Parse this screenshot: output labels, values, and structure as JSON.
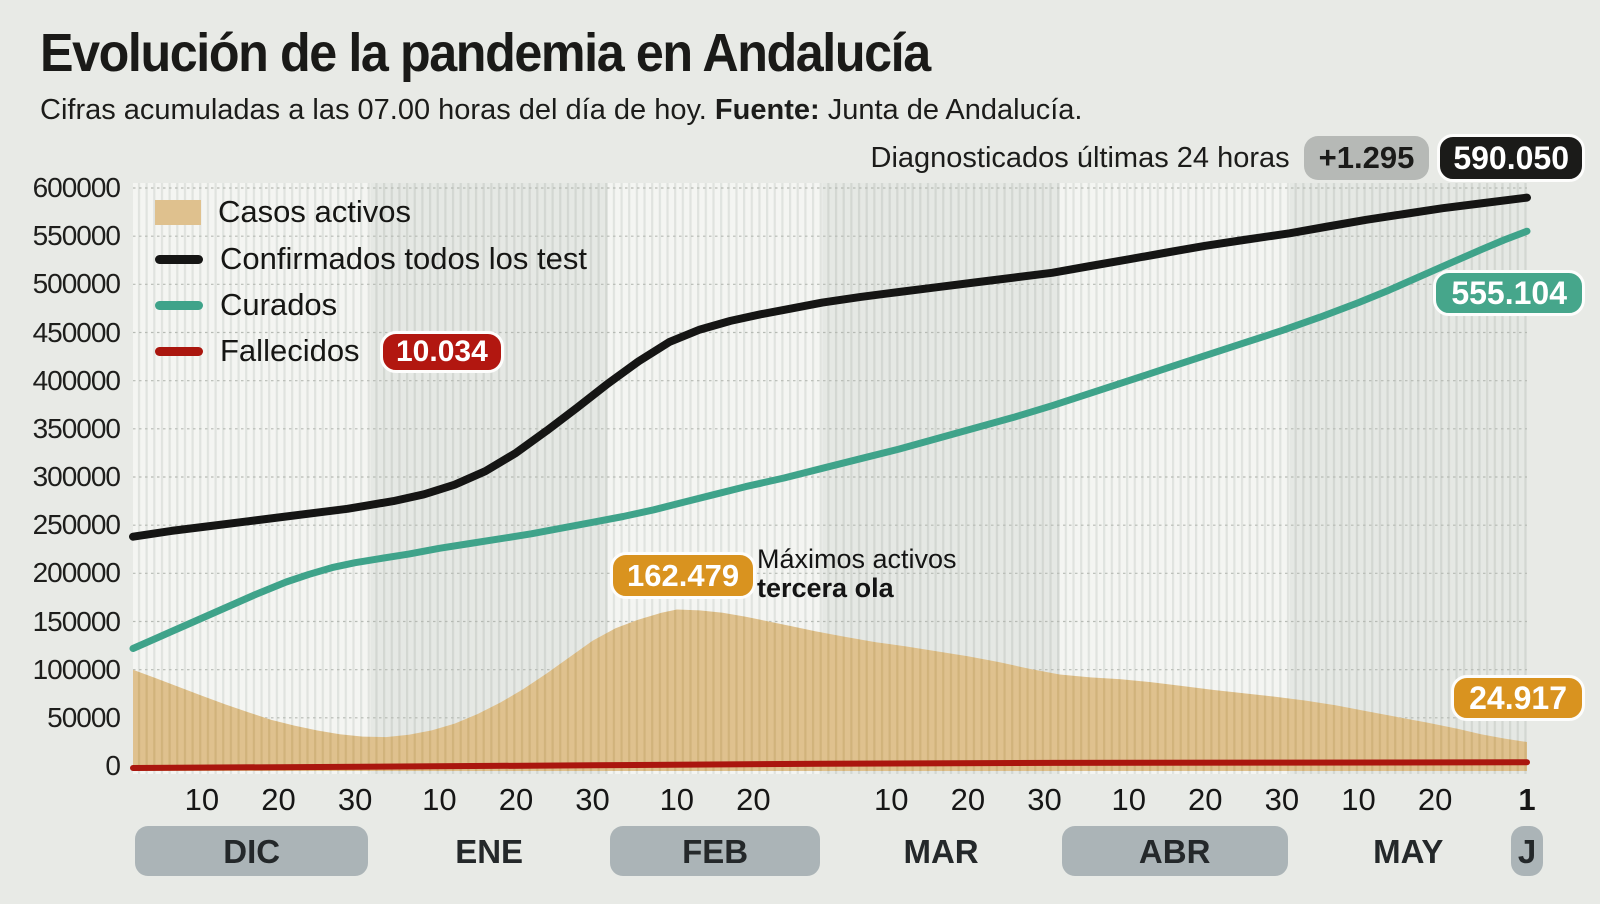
{
  "header": {
    "title": "Evolución de la pandemia en Andalucía",
    "subtitle_prefix": "Cifras acumuladas a las 07.00 horas del día de hoy. ",
    "subtitle_bold": "Fuente:",
    "subtitle_suffix": " Junta de Andalucía.",
    "diag_label": "Diagnosticados últimas 24 horas",
    "diag_delta": "+1.295",
    "diag_total": "590.050"
  },
  "legend": {
    "items": [
      {
        "label": "Casos activos",
        "type": "area",
        "color": "#dfc18e"
      },
      {
        "label": "Confirmados todos los test",
        "type": "line",
        "color": "#151514"
      },
      {
        "label": "Curados",
        "type": "line",
        "color": "#3fa38a"
      },
      {
        "label": "Fallecidos",
        "type": "line",
        "color": "#aa160e",
        "badge": "10.034",
        "badge_color": "#b21710"
      }
    ]
  },
  "annotations": {
    "max_active_value": "162.479",
    "max_active_line1": "Máximos activos",
    "max_active_line2": "tercera ola",
    "curados_end": "555.104",
    "activos_end": "24.917"
  },
  "axes": {
    "y_ticks": [
      {
        "label": "600000",
        "value": 600000
      },
      {
        "label": "550000",
        "value": 550000
      },
      {
        "label": "500000",
        "value": 500000
      },
      {
        "label": "450000",
        "value": 450000
      },
      {
        "label": "400000",
        "value": 400000
      },
      {
        "label": "350000",
        "value": 350000
      },
      {
        "label": "300000",
        "value": 300000
      },
      {
        "label": "250000",
        "value": 250000
      },
      {
        "label": "200000",
        "value": 200000
      },
      {
        "label": "150000",
        "value": 150000
      },
      {
        "label": "100000",
        "value": 100000
      },
      {
        "label": "50000",
        "value": 50000
      },
      {
        "label": "0",
        "value": 0
      }
    ],
    "x_ticks": [
      {
        "label": "10",
        "day": 9
      },
      {
        "label": "20",
        "day": 19
      },
      {
        "label": "30",
        "day": 29
      },
      {
        "label": "10",
        "day": 40
      },
      {
        "label": "20",
        "day": 50
      },
      {
        "label": "30",
        "day": 60
      },
      {
        "label": "10",
        "day": 71
      },
      {
        "label": "20",
        "day": 81
      },
      {
        "label": "10",
        "day": 99
      },
      {
        "label": "20",
        "day": 109
      },
      {
        "label": "30",
        "day": 119
      },
      {
        "label": "10",
        "day": 130
      },
      {
        "label": "20",
        "day": 140
      },
      {
        "label": "30",
        "day": 150
      },
      {
        "label": "10",
        "day": 160
      },
      {
        "label": "20",
        "day": 170
      },
      {
        "label": "1",
        "day": 182,
        "bold": true
      }
    ],
    "months": [
      {
        "label": "DIC",
        "days": 31,
        "pill": true,
        "shade": "light"
      },
      {
        "label": "ENE",
        "days": 31,
        "pill": false,
        "shade": "dark"
      },
      {
        "label": "FEB",
        "days": 28,
        "pill": true,
        "shade": "light"
      },
      {
        "label": "MAR",
        "days": 31,
        "pill": false,
        "shade": "dark"
      },
      {
        "label": "ABR",
        "days": 30,
        "pill": true,
        "shade": "light"
      },
      {
        "label": "MAY",
        "days": 31,
        "pill": false,
        "shade": "dark"
      },
      {
        "label": "J",
        "days": 0,
        "pill": true,
        "shade": "light"
      }
    ]
  },
  "chart_data": {
    "type": "area",
    "x_unit": "days since 1 Dec",
    "x_range": [
      0,
      182
    ],
    "ylim": [
      0,
      600000
    ],
    "grid": "horizontal-dotted",
    "legend_position": "top-left",
    "series": [
      {
        "name": "Casos activos",
        "type": "area",
        "color": "#dfc18e",
        "points": [
          [
            0,
            100000
          ],
          [
            3,
            91000
          ],
          [
            6,
            82000
          ],
          [
            9,
            73000
          ],
          [
            12,
            64000
          ],
          [
            15,
            56000
          ],
          [
            18,
            48000
          ],
          [
            21,
            42000
          ],
          [
            24,
            37000
          ],
          [
            27,
            33000
          ],
          [
            30,
            30500
          ],
          [
            33,
            30000
          ],
          [
            36,
            32500
          ],
          [
            39,
            37000
          ],
          [
            42,
            44000
          ],
          [
            45,
            54000
          ],
          [
            48,
            66000
          ],
          [
            51,
            80000
          ],
          [
            54,
            96000
          ],
          [
            57,
            113000
          ],
          [
            60,
            130000
          ],
          [
            63,
            143000
          ],
          [
            66,
            152000
          ],
          [
            69,
            159000
          ],
          [
            71,
            162479
          ],
          [
            74,
            161500
          ],
          [
            77,
            159000
          ],
          [
            80,
            155000
          ],
          [
            83,
            150000
          ],
          [
            86,
            145000
          ],
          [
            89,
            140000
          ],
          [
            93,
            134000
          ],
          [
            97,
            128500
          ],
          [
            101,
            124000
          ],
          [
            105,
            119000
          ],
          [
            109,
            114000
          ],
          [
            113,
            108000
          ],
          [
            117,
            101000
          ],
          [
            121,
            95000
          ],
          [
            125,
            92000
          ],
          [
            129,
            90000
          ],
          [
            133,
            87000
          ],
          [
            137,
            83000
          ],
          [
            141,
            79000
          ],
          [
            145,
            75500
          ],
          [
            149,
            72000
          ],
          [
            153,
            68000
          ],
          [
            157,
            63000
          ],
          [
            161,
            57000
          ],
          [
            165,
            51000
          ],
          [
            169,
            45000
          ],
          [
            173,
            38500
          ],
          [
            176,
            33000
          ],
          [
            179,
            28500
          ],
          [
            182,
            24917
          ]
        ]
      },
      {
        "name": "Confirmados todos los test",
        "type": "line",
        "color": "#151514",
        "points": [
          [
            0,
            238000
          ],
          [
            5,
            244000
          ],
          [
            10,
            249000
          ],
          [
            15,
            254000
          ],
          [
            20,
            259000
          ],
          [
            25,
            264000
          ],
          [
            28,
            267000
          ],
          [
            31,
            271000
          ],
          [
            34,
            275000
          ],
          [
            38,
            282000
          ],
          [
            42,
            292000
          ],
          [
            46,
            306000
          ],
          [
            50,
            325000
          ],
          [
            54,
            348000
          ],
          [
            58,
            372000
          ],
          [
            62,
            397000
          ],
          [
            66,
            420000
          ],
          [
            70,
            440000
          ],
          [
            74,
            453000
          ],
          [
            78,
            462000
          ],
          [
            82,
            469000
          ],
          [
            86,
            475000
          ],
          [
            90,
            481000
          ],
          [
            95,
            487000
          ],
          [
            100,
            492000
          ],
          [
            105,
            497000
          ],
          [
            110,
            502000
          ],
          [
            115,
            507000
          ],
          [
            120,
            512000
          ],
          [
            125,
            519000
          ],
          [
            130,
            526000
          ],
          [
            135,
            533000
          ],
          [
            140,
            540000
          ],
          [
            145,
            546000
          ],
          [
            151,
            553000
          ],
          [
            156,
            560000
          ],
          [
            161,
            567000
          ],
          [
            166,
            573000
          ],
          [
            171,
            579000
          ],
          [
            176,
            584000
          ],
          [
            182,
            590050
          ]
        ]
      },
      {
        "name": "Curados",
        "type": "line",
        "color": "#3fa38a",
        "points": [
          [
            0,
            122000
          ],
          [
            4,
            136000
          ],
          [
            8,
            150000
          ],
          [
            12,
            164000
          ],
          [
            16,
            178000
          ],
          [
            20,
            191000
          ],
          [
            23,
            199000
          ],
          [
            26,
            206000
          ],
          [
            29,
            211000
          ],
          [
            32,
            215000
          ],
          [
            36,
            220000
          ],
          [
            40,
            226000
          ],
          [
            44,
            231000
          ],
          [
            48,
            236000
          ],
          [
            52,
            241000
          ],
          [
            56,
            247000
          ],
          [
            60,
            253000
          ],
          [
            64,
            259000
          ],
          [
            68,
            266000
          ],
          [
            72,
            274000
          ],
          [
            76,
            282000
          ],
          [
            80,
            290000
          ],
          [
            85,
            299000
          ],
          [
            90,
            309000
          ],
          [
            95,
            319000
          ],
          [
            100,
            329000
          ],
          [
            105,
            340000
          ],
          [
            110,
            351000
          ],
          [
            115,
            362000
          ],
          [
            120,
            374000
          ],
          [
            125,
            387000
          ],
          [
            130,
            400000
          ],
          [
            135,
            413000
          ],
          [
            140,
            426000
          ],
          [
            145,
            439000
          ],
          [
            150,
            452000
          ],
          [
            155,
            466000
          ],
          [
            160,
            481000
          ],
          [
            164,
            494000
          ],
          [
            168,
            508000
          ],
          [
            172,
            522000
          ],
          [
            176,
            536000
          ],
          [
            179,
            546000
          ],
          [
            182,
            555104
          ]
        ]
      },
      {
        "name": "Fallecidos",
        "type": "line",
        "color": "#aa160e",
        "points": [
          [
            0,
            4200
          ],
          [
            30,
            5500
          ],
          [
            60,
            7000
          ],
          [
            90,
            8600
          ],
          [
            120,
            9400
          ],
          [
            151,
            9800
          ],
          [
            182,
            10034
          ]
        ]
      }
    ]
  }
}
